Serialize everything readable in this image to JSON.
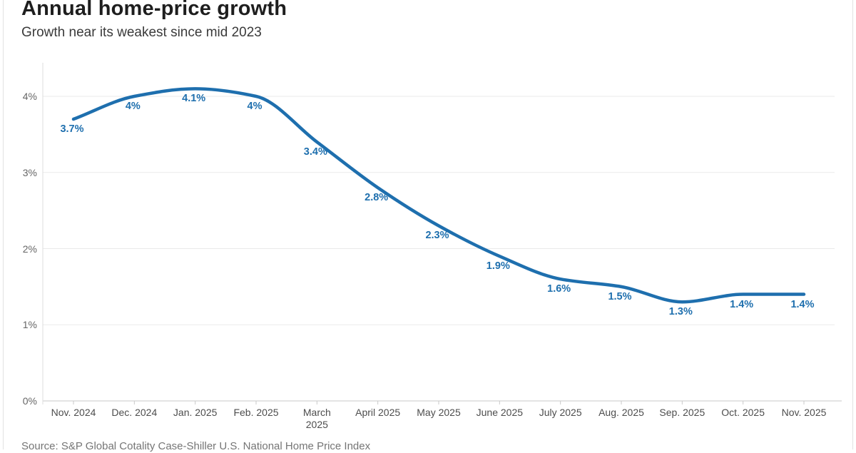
{
  "header": {
    "title": "Annual home-price growth",
    "subtitle": "Growth near its weakest since mid 2023"
  },
  "footer": {
    "source": "Source: S&P Global Cotality Case-Shiller U.S. National Home Price Index"
  },
  "colors": {
    "line": "#1e6fae",
    "point_label": "#1e6fae",
    "gridline": "#eaeaea",
    "baseline": "#c9c9c9",
    "axis_line": "#dedede",
    "tick": "#c9c9c9"
  },
  "chart_data": {
    "type": "line",
    "title": "Annual home-price growth",
    "subtitle": "Growth near its weakest since mid 2023",
    "source": "Source: S&P Global Cotality Case-Shiller U.S. National Home Price Index",
    "categories": [
      "Nov. 2024",
      "Dec. 2024",
      "Jan. 2025",
      "Feb. 2025",
      "March 2025",
      "April 2025",
      "May 2025",
      "June 2025",
      "July 2025",
      "Aug. 2025",
      "Sep. 2025",
      "Oct. 2025",
      "Nov. 2025"
    ],
    "x_tick_lines": [
      "Nov. 2024",
      "Dec. 2024",
      "Jan. 2025",
      "Feb. 2025",
      "March\n2025",
      "April 2025",
      "May 2025",
      "June 2025",
      "July 2025",
      "Aug. 2025",
      "Sep. 2025",
      "Oct. 2025",
      "Nov. 2025"
    ],
    "series": [
      {
        "name": "Annual home-price growth (%)",
        "values": [
          3.7,
          4.0,
          4.1,
          4.0,
          3.4,
          2.8,
          2.3,
          1.9,
          1.6,
          1.5,
          1.3,
          1.4,
          1.4
        ],
        "point_labels": [
          "3.7%",
          "4%",
          "4.1%",
          "4%",
          "3.4%",
          "2.8%",
          "2.3%",
          "1.9%",
          "1.6%",
          "1.5%",
          "1.3%",
          "1.4%",
          "1.4%"
        ]
      }
    ],
    "xlabel": "",
    "ylabel": "",
    "y_ticks": [
      0,
      1,
      2,
      3,
      4
    ],
    "y_tick_labels": [
      "0%",
      "1%",
      "2%",
      "3%",
      "4%"
    ],
    "ylim": [
      0,
      4.4
    ],
    "grid": true,
    "legend_position": "none",
    "curve": "monotone"
  }
}
